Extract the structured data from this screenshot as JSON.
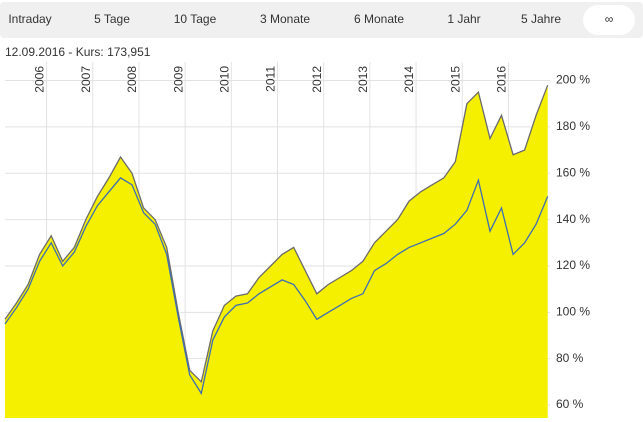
{
  "tabs": [
    "Intraday",
    "5 Tage",
    "10 Tage",
    "3 Monate",
    "6 Monate",
    "1 Jahr",
    "5 Jahre",
    "∞"
  ],
  "active_tab": 7,
  "chart_data": {
    "type": "area",
    "subtitle": "12.09.2016  -  Kurs: 173,951",
    "x": [
      2005.1,
      2005.35,
      2005.6,
      2005.85,
      2006.1,
      2006.35,
      2006.6,
      2006.85,
      2007.1,
      2007.35,
      2007.6,
      2007.85,
      2008.1,
      2008.35,
      2008.6,
      2008.85,
      2009.1,
      2009.35,
      2009.6,
      2009.85,
      2010.1,
      2010.35,
      2010.6,
      2010.85,
      2011.1,
      2011.35,
      2011.6,
      2011.85,
      2012.1,
      2012.35,
      2012.6,
      2012.85,
      2013.1,
      2013.35,
      2013.6,
      2013.85,
      2014.1,
      2014.35,
      2014.6,
      2014.85,
      2015.1,
      2015.35,
      2015.6,
      2015.85,
      2016.1,
      2016.35,
      2016.6,
      2016.85
    ],
    "series": [
      {
        "color": "#f5f000",
        "line_color": "#6b6b6b",
        "fill": true,
        "values": [
          97,
          104,
          112,
          125,
          133,
          122,
          128,
          140,
          150,
          158,
          167,
          160,
          145,
          140,
          128,
          100,
          75,
          70,
          92,
          103,
          107,
          108,
          115,
          120,
          125,
          128,
          118,
          108,
          112,
          115,
          118,
          122,
          130,
          135,
          140,
          148,
          152,
          155,
          158,
          165,
          190,
          195,
          175,
          185,
          168,
          170,
          185,
          198
        ]
      },
      {
        "color": "#3f6db3",
        "fill": false,
        "values": [
          95,
          102,
          110,
          122,
          130,
          120,
          126,
          137,
          146,
          152,
          158,
          155,
          143,
          138,
          125,
          98,
          73,
          65,
          88,
          98,
          103,
          104,
          108,
          111,
          114,
          112,
          105,
          97,
          100,
          103,
          106,
          108,
          118,
          121,
          125,
          128,
          130,
          132,
          134,
          138,
          144,
          157,
          135,
          145,
          125,
          130,
          138,
          150
        ]
      }
    ],
    "xlim": [
      2005.1,
      2016.9
    ],
    "xticks": [
      2006,
      2007,
      2008,
      2009,
      2010,
      2011,
      2012,
      2013,
      2014,
      2015,
      2016
    ],
    "ylim": [
      54.4,
      208
    ],
    "yticks": [
      {
        "value": 60,
        "label": "60 %"
      },
      {
        "value": 80,
        "label": "80 %"
      },
      {
        "value": 100,
        "label": "100 %"
      },
      {
        "value": 120,
        "label": "120 %"
      },
      {
        "value": 140,
        "label": "140 %"
      },
      {
        "value": 160,
        "label": "160 %"
      },
      {
        "value": 180,
        "label": "180 %"
      },
      {
        "value": 200,
        "label": "200 %"
      }
    ],
    "grid": true
  }
}
